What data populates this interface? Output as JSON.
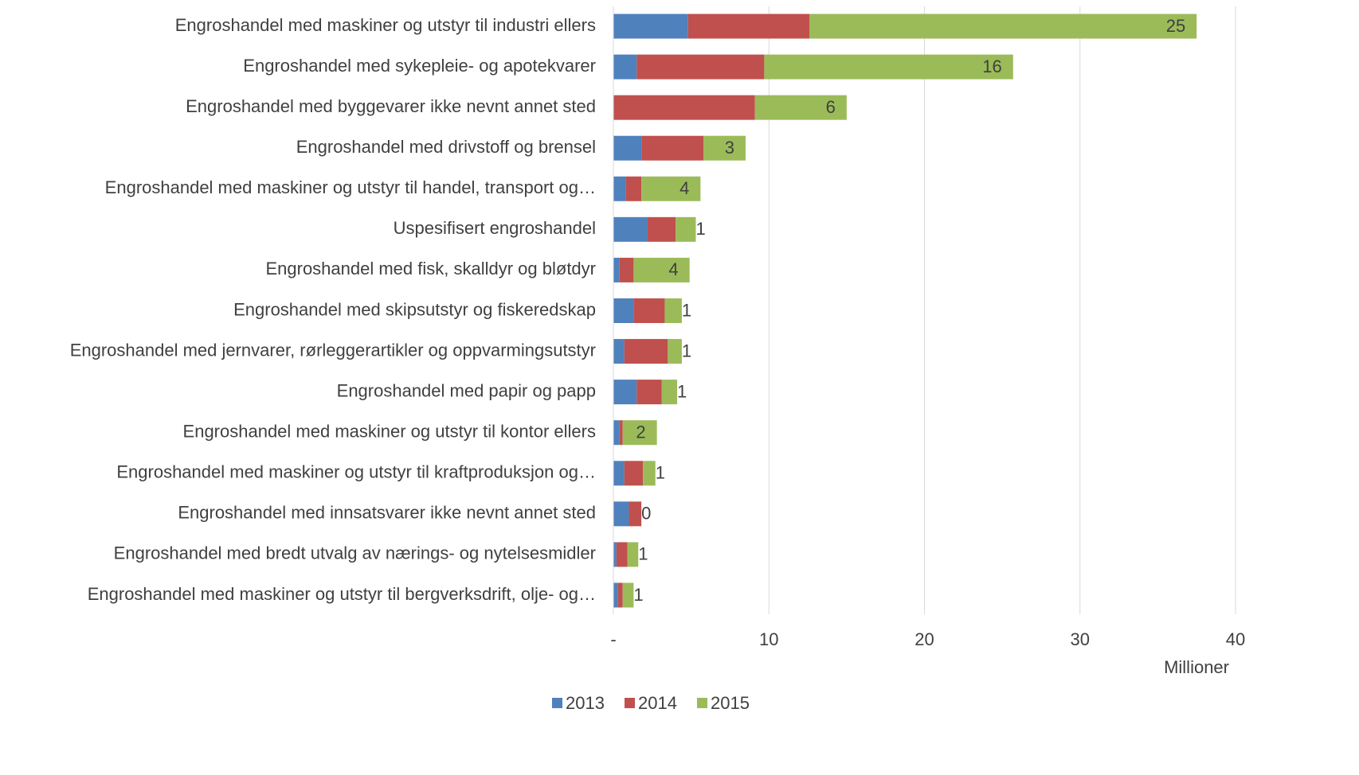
{
  "chart_data": {
    "type": "stacked-barh",
    "categories": [
      "Engroshandel med maskiner og utstyr til industri ellers",
      "Engroshandel med sykepleie- og apotekvarer",
      "Engroshandel med byggevarer ikke nevnt annet sted",
      "Engroshandel med drivstoff og brensel",
      "Engroshandel med maskiner og utstyr til handel, transport og…",
      "Uspesifisert engroshandel",
      "Engroshandel med fisk, skalldyr og bløtdyr",
      "Engroshandel med skipsutstyr og fiskeredskap",
      "Engroshandel med jernvarer, rørleggerartikler og oppvarmingsutstyr",
      "Engroshandel med papir og papp",
      "Engroshandel med maskiner og utstyr til kontor ellers",
      "Engroshandel med maskiner og utstyr til kraftproduksjon og…",
      "Engroshandel med innsatsvarer ikke nevnt annet sted",
      "Engroshandel med bredt utvalg av nærings- og nytelsesmidler",
      "Engroshandel med maskiner og utstyr til bergverksdrift, olje- og…"
    ],
    "series": [
      {
        "name": "2013",
        "color": "#4f81bd",
        "values": [
          4.8,
          1.5,
          0,
          1.8,
          0.8,
          2.2,
          0.4,
          1.3,
          0.7,
          1.5,
          0.4,
          0.7,
          1.0,
          0.2,
          0.3
        ]
      },
      {
        "name": "2014",
        "color": "#c0504d",
        "values": [
          7.8,
          8.2,
          9.1,
          4.0,
          1.0,
          1.8,
          0.9,
          2.0,
          2.8,
          1.6,
          0.2,
          1.2,
          0.8,
          0.7,
          0.3
        ]
      },
      {
        "name": "2015",
        "color": "#9bbb59",
        "values": [
          24.9,
          16.0,
          5.9,
          2.7,
          3.8,
          1.3,
          3.6,
          1.1,
          0.9,
          1.0,
          2.2,
          0.8,
          0,
          0.7,
          0.7
        ],
        "value_labels": [
          "25",
          "16",
          "6",
          "3",
          "4",
          "1",
          "4",
          "1",
          "1",
          "1",
          "2",
          "1",
          "0",
          "1",
          "1"
        ]
      }
    ],
    "xlim": [
      0,
      40
    ],
    "xticks": [
      {
        "value": 0,
        "label": "-"
      },
      10,
      20,
      30,
      40
    ],
    "x_axis_label": "Millioner",
    "grid": true,
    "legend": "bottom"
  }
}
